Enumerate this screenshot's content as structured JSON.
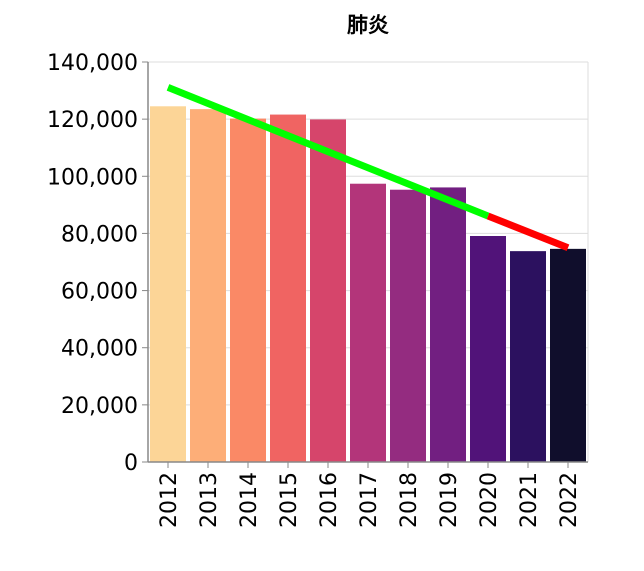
{
  "chart_data": {
    "type": "bar",
    "title": "肺炎",
    "xlabel": "",
    "ylabel": "",
    "categories": [
      "2012",
      "2013",
      "2014",
      "2015",
      "2016",
      "2017",
      "2018",
      "2019",
      "2020",
      "2021",
      "2022"
    ],
    "values": [
      124500,
      123500,
      120200,
      121600,
      119900,
      97400,
      95300,
      96100,
      79100,
      73800,
      74600
    ],
    "colors": [
      "#fcd597",
      "#fdae78",
      "#fa8966",
      "#f06462",
      "#d6456b",
      "#b3357a",
      "#942c80",
      "#721f81",
      "#511379",
      "#2c115f",
      "#100e2c"
    ],
    "ylim": [
      0,
      140000
    ],
    "yticks": [
      "0",
      "20,000",
      "40,000",
      "60,000",
      "80,000",
      "100,000",
      "120,000",
      "140,000"
    ],
    "grid": true,
    "trend_lines": [
      {
        "color": "#00ff00",
        "x": [
          "2012",
          "2020"
        ],
        "y": [
          131100,
          86100
        ]
      },
      {
        "color": "#ff0000",
        "x": [
          "2020",
          "2022"
        ],
        "y": [
          86100,
          75000
        ]
      }
    ]
  }
}
